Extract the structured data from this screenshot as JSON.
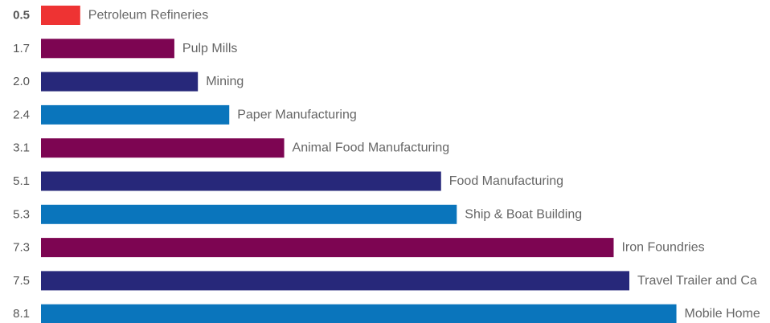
{
  "chart_data": {
    "type": "bar",
    "orientation": "horizontal",
    "categories": [
      "Petroleum Refineries",
      "Pulp Mills",
      "Mining",
      "Paper Manufacturing",
      "Animal Food Manufacturing",
      "Food Manufacturing",
      "Ship & Boat Building",
      "Iron Foundries",
      "Travel Trailer and Ca",
      "Mobile Home"
    ],
    "values": [
      0.5,
      1.7,
      2.0,
      2.4,
      3.1,
      5.1,
      5.3,
      7.3,
      7.5,
      8.1
    ],
    "value_labels": [
      "0.5",
      "1.7",
      "2.0",
      "2.4",
      "3.1",
      "5.1",
      "5.3",
      "7.3",
      "7.5",
      "8.1"
    ],
    "bar_colors": [
      "#ee3333",
      "#7d0552",
      "#27287a",
      "#0a75bc",
      "#7d0552",
      "#27287a",
      "#0a75bc",
      "#7d0552",
      "#27287a",
      "#0a75bc"
    ],
    "highlighted_index": 0,
    "grid": false,
    "legend": false
  }
}
